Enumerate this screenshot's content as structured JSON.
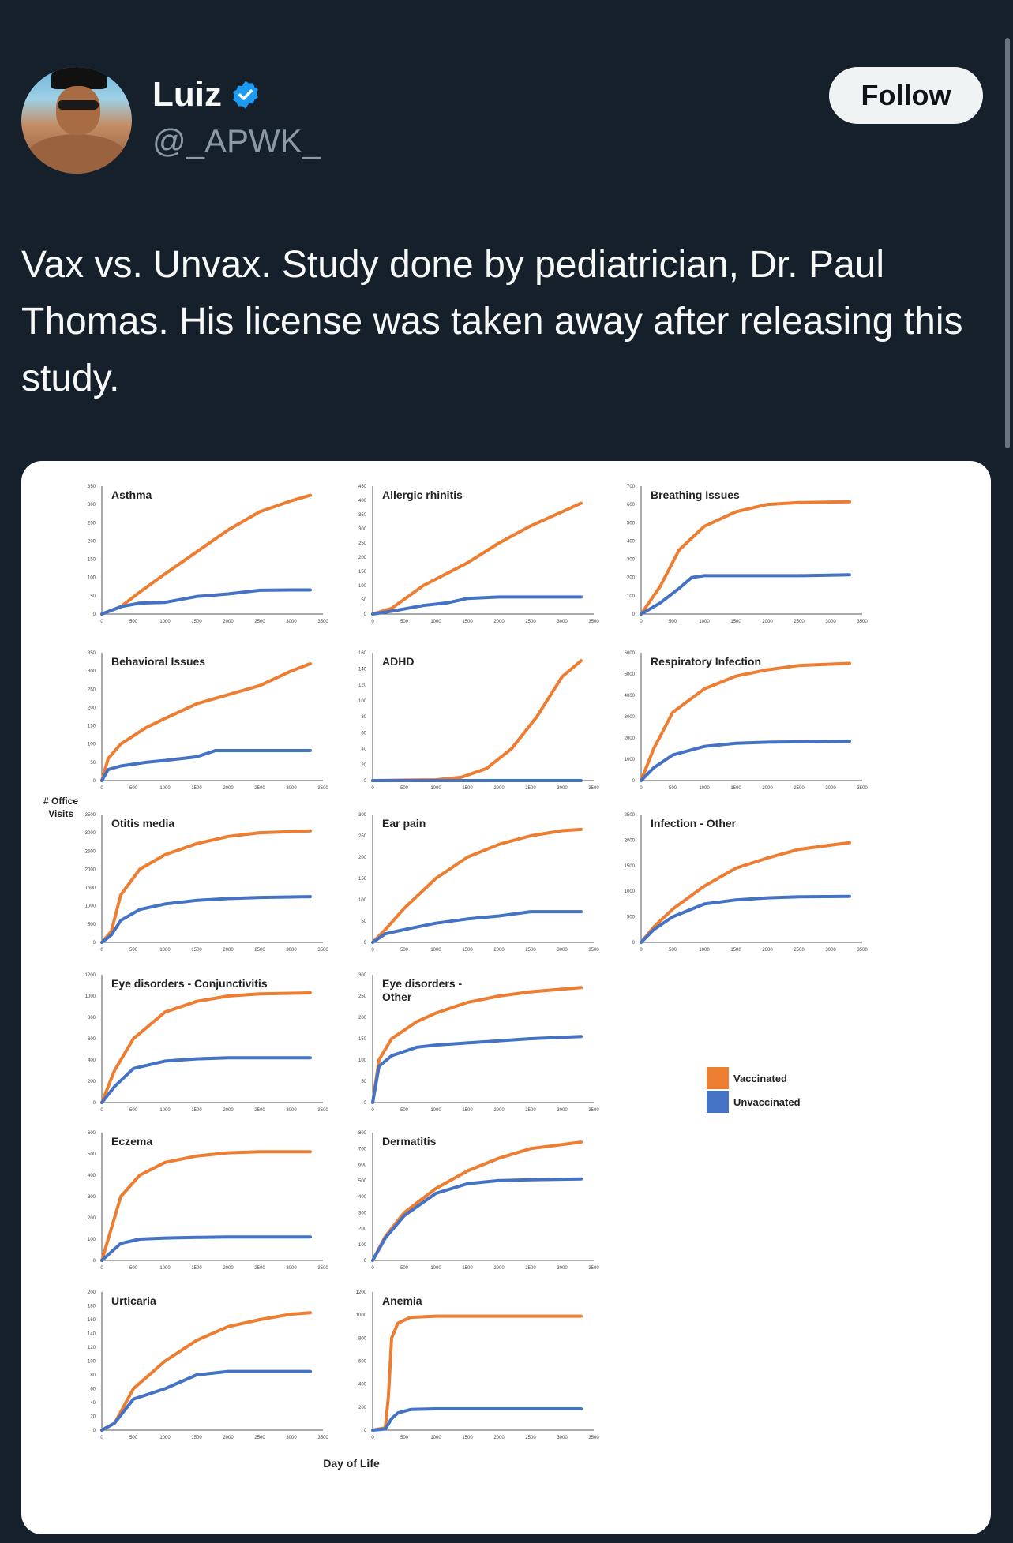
{
  "tweet": {
    "author_name": "Luiz",
    "handle": "@_APWK_",
    "follow_label": "Follow",
    "text": "Vax vs. Unvax. Study done by pediatrician, Dr. Paul Thomas. His license was taken away after releasing this study."
  },
  "colors": {
    "background": "#15202b",
    "verified": "#1d9bf0",
    "vaccinated": "#ed7d31",
    "unvaccinated": "#4472c4"
  },
  "figure": {
    "y_axis_label": "# Office Visits",
    "x_axis_label": "Day of Life",
    "legend": [
      {
        "label": "Vaccinated",
        "color": "#ed7d31"
      },
      {
        "label": "Unvaccinated",
        "color": "#4472c4"
      }
    ]
  },
  "chart_data": [
    {
      "type": "line",
      "title": "Asthma",
      "xlim": [
        0,
        3500
      ],
      "ylim": [
        0,
        350
      ],
      "x_ticks": [
        0,
        500,
        1000,
        1500,
        2000,
        2500,
        3000,
        3500
      ],
      "y_ticks": [
        0,
        50,
        100,
        150,
        200,
        250,
        300,
        350
      ],
      "series": [
        {
          "name": "Vaccinated",
          "x": [
            0,
            300,
            600,
            1000,
            1500,
            2000,
            2500,
            3000,
            3300
          ],
          "y": [
            0,
            20,
            60,
            110,
            170,
            230,
            280,
            310,
            325
          ]
        },
        {
          "name": "Unvaccinated",
          "x": [
            0,
            300,
            600,
            1000,
            1500,
            2000,
            2500,
            3000,
            3300
          ],
          "y": [
            0,
            20,
            30,
            32,
            48,
            55,
            65,
            66,
            66
          ]
        }
      ]
    },
    {
      "type": "line",
      "title": "Allergic rhinitis",
      "xlim": [
        0,
        3500
      ],
      "ylim": [
        0,
        450
      ],
      "x_ticks": [
        0,
        500,
        1000,
        1500,
        2000,
        2500,
        3000,
        3500
      ],
      "y_ticks": [
        0,
        50,
        100,
        150,
        200,
        250,
        300,
        350,
        400,
        450
      ],
      "series": [
        {
          "name": "Vaccinated",
          "x": [
            0,
            300,
            800,
            1500,
            2000,
            2500,
            3000,
            3300
          ],
          "y": [
            0,
            20,
            100,
            180,
            250,
            310,
            360,
            390
          ]
        },
        {
          "name": "Unvaccinated",
          "x": [
            0,
            300,
            800,
            1200,
            1500,
            2000,
            2500,
            3300
          ],
          "y": [
            0,
            10,
            30,
            40,
            55,
            60,
            60,
            60
          ]
        }
      ]
    },
    {
      "type": "line",
      "title": "Breathing Issues",
      "xlim": [
        0,
        3500
      ],
      "ylim": [
        0,
        700
      ],
      "x_ticks": [
        0,
        500,
        1000,
        1500,
        2000,
        2500,
        3000,
        3500
      ],
      "y_ticks": [
        0,
        100,
        200,
        300,
        400,
        500,
        600,
        700
      ],
      "series": [
        {
          "name": "Vaccinated",
          "x": [
            0,
            300,
            600,
            1000,
            1500,
            2000,
            2500,
            3300
          ],
          "y": [
            0,
            150,
            350,
            480,
            560,
            600,
            610,
            615
          ]
        },
        {
          "name": "Unvaccinated",
          "x": [
            0,
            300,
            600,
            800,
            1000,
            1500,
            2500,
            3300
          ],
          "y": [
            0,
            60,
            140,
            200,
            210,
            210,
            210,
            215
          ]
        }
      ]
    },
    {
      "type": "line",
      "title": "Behavioral Issues",
      "xlim": [
        0,
        3500
      ],
      "ylim": [
        0,
        350
      ],
      "x_ticks": [
        0,
        500,
        1000,
        1500,
        2000,
        2500,
        3000,
        3500
      ],
      "y_ticks": [
        0,
        50,
        100,
        150,
        200,
        250,
        300,
        350
      ],
      "series": [
        {
          "name": "Vaccinated",
          "x": [
            0,
            100,
            300,
            700,
            1000,
            1500,
            2000,
            2500,
            3000,
            3300
          ],
          "y": [
            0,
            60,
            100,
            145,
            170,
            210,
            235,
            260,
            300,
            320
          ]
        },
        {
          "name": "Unvaccinated",
          "x": [
            0,
            100,
            300,
            700,
            1000,
            1500,
            1800,
            2000,
            2500,
            3300
          ],
          "y": [
            0,
            30,
            40,
            50,
            55,
            65,
            82,
            82,
            82,
            82
          ]
        }
      ]
    },
    {
      "type": "line",
      "title": "ADHD",
      "xlim": [
        0,
        3500
      ],
      "ylim": [
        0,
        160
      ],
      "x_ticks": [
        0,
        500,
        1000,
        1500,
        2000,
        2500,
        3000,
        3500
      ],
      "y_ticks": [
        0,
        20,
        40,
        60,
        80,
        100,
        120,
        140,
        160
      ],
      "series": [
        {
          "name": "Vaccinated",
          "x": [
            0,
            1000,
            1400,
            1800,
            2200,
            2600,
            3000,
            3300
          ],
          "y": [
            0,
            1,
            4,
            15,
            40,
            80,
            130,
            150
          ]
        },
        {
          "name": "Unvaccinated",
          "x": [
            0,
            1000,
            2000,
            3300
          ],
          "y": [
            0,
            0,
            0,
            0
          ]
        }
      ]
    },
    {
      "type": "line",
      "title": "Respiratory Infection",
      "xlim": [
        0,
        3500
      ],
      "ylim": [
        0,
        6000
      ],
      "x_ticks": [
        0,
        500,
        1000,
        1500,
        2000,
        2500,
        3000,
        3500
      ],
      "y_ticks": [
        0,
        1000,
        2000,
        3000,
        4000,
        5000,
        6000
      ],
      "series": [
        {
          "name": "Vaccinated",
          "x": [
            0,
            200,
            500,
            1000,
            1500,
            2000,
            2500,
            3300
          ],
          "y": [
            0,
            1500,
            3200,
            4300,
            4900,
            5200,
            5400,
            5500
          ]
        },
        {
          "name": "Unvaccinated",
          "x": [
            0,
            200,
            500,
            1000,
            1500,
            2000,
            2500,
            3300
          ],
          "y": [
            0,
            600,
            1200,
            1600,
            1750,
            1800,
            1820,
            1850
          ]
        }
      ]
    },
    {
      "type": "line",
      "title": "Otitis media",
      "xlim": [
        0,
        3500
      ],
      "ylim": [
        0,
        3500
      ],
      "x_ticks": [
        0,
        500,
        1000,
        1500,
        2000,
        2500,
        3000,
        3500
      ],
      "y_ticks": [
        0,
        500,
        1000,
        1500,
        2000,
        2500,
        3000,
        3500
      ],
      "series": [
        {
          "name": "Vaccinated",
          "x": [
            0,
            150,
            300,
            600,
            1000,
            1500,
            2000,
            2500,
            3300
          ],
          "y": [
            0,
            300,
            1300,
            2000,
            2400,
            2700,
            2900,
            3000,
            3050
          ]
        },
        {
          "name": "Unvaccinated",
          "x": [
            0,
            150,
            300,
            600,
            1000,
            1500,
            2000,
            2500,
            3300
          ],
          "y": [
            0,
            200,
            600,
            900,
            1050,
            1150,
            1200,
            1230,
            1250
          ]
        }
      ]
    },
    {
      "type": "line",
      "title": "Ear pain",
      "xlim": [
        0,
        3500
      ],
      "ylim": [
        0,
        300
      ],
      "x_ticks": [
        0,
        500,
        1000,
        1500,
        2000,
        2500,
        3000,
        3500
      ],
      "y_ticks": [
        0,
        50,
        100,
        150,
        200,
        250,
        300
      ],
      "series": [
        {
          "name": "Vaccinated",
          "x": [
            0,
            200,
            500,
            1000,
            1500,
            2000,
            2500,
            3000,
            3300
          ],
          "y": [
            0,
            30,
            80,
            150,
            200,
            230,
            250,
            262,
            265
          ]
        },
        {
          "name": "Unvaccinated",
          "x": [
            0,
            200,
            500,
            1000,
            1500,
            2000,
            2500,
            3000,
            3300
          ],
          "y": [
            0,
            20,
            30,
            45,
            55,
            62,
            72,
            72,
            72
          ]
        }
      ]
    },
    {
      "type": "line",
      "title": "Infection - Other",
      "xlim": [
        0,
        3500
      ],
      "ylim": [
        0,
        2500
      ],
      "x_ticks": [
        0,
        500,
        1000,
        1500,
        2000,
        2500,
        3000,
        3500
      ],
      "y_ticks": [
        0,
        500,
        1000,
        1500,
        2000,
        2500
      ],
      "series": [
        {
          "name": "Vaccinated",
          "x": [
            0,
            200,
            500,
            1000,
            1500,
            2000,
            2500,
            3300
          ],
          "y": [
            0,
            300,
            650,
            1100,
            1450,
            1650,
            1820,
            1950
          ]
        },
        {
          "name": "Unvaccinated",
          "x": [
            0,
            200,
            500,
            1000,
            1500,
            2000,
            2500,
            3300
          ],
          "y": [
            0,
            250,
            500,
            750,
            830,
            870,
            890,
            900
          ]
        }
      ]
    },
    {
      "type": "line",
      "title": "Eye disorders - Conjunctivitis",
      "xlim": [
        0,
        3500
      ],
      "ylim": [
        0,
        1200
      ],
      "x_ticks": [
        0,
        500,
        1000,
        1500,
        2000,
        2500,
        3000,
        3500
      ],
      "y_ticks": [
        0,
        200,
        400,
        600,
        800,
        1000,
        1200
      ],
      "series": [
        {
          "name": "Vaccinated",
          "x": [
            0,
            200,
            500,
            1000,
            1500,
            2000,
            2500,
            3300
          ],
          "y": [
            0,
            300,
            600,
            850,
            950,
            1000,
            1020,
            1030
          ]
        },
        {
          "name": "Unvaccinated",
          "x": [
            0,
            200,
            500,
            1000,
            1500,
            2000,
            2500,
            3300
          ],
          "y": [
            0,
            150,
            320,
            390,
            410,
            420,
            420,
            420
          ]
        }
      ]
    },
    {
      "type": "line",
      "title": "Eye disorders - Other",
      "xlim": [
        0,
        3500
      ],
      "ylim": [
        0,
        300
      ],
      "x_ticks": [
        0,
        500,
        1000,
        1500,
        2000,
        2500,
        3000,
        3500
      ],
      "y_ticks": [
        0,
        50,
        100,
        150,
        200,
        250,
        300
      ],
      "series": [
        {
          "name": "Vaccinated",
          "x": [
            0,
            100,
            300,
            700,
            1000,
            1500,
            2000,
            2500,
            3300
          ],
          "y": [
            0,
            100,
            150,
            190,
            210,
            235,
            250,
            260,
            270
          ]
        },
        {
          "name": "Unvaccinated",
          "x": [
            0,
            100,
            300,
            700,
            1000,
            1500,
            2000,
            2500,
            3300
          ],
          "y": [
            0,
            85,
            110,
            130,
            135,
            140,
            145,
            150,
            155
          ]
        }
      ]
    },
    {
      "type": "line",
      "title": "Eczema",
      "xlim": [
        0,
        3500
      ],
      "ylim": [
        0,
        600
      ],
      "x_ticks": [
        0,
        500,
        1000,
        1500,
        2000,
        2500,
        3000,
        3500
      ],
      "y_ticks": [
        0,
        100,
        200,
        300,
        400,
        500,
        600
      ],
      "series": [
        {
          "name": "Vaccinated",
          "x": [
            0,
            150,
            300,
            600,
            1000,
            1500,
            2000,
            2500,
            3300
          ],
          "y": [
            0,
            150,
            300,
            400,
            460,
            490,
            505,
            510,
            510
          ]
        },
        {
          "name": "Unvaccinated",
          "x": [
            0,
            150,
            300,
            600,
            1000,
            1500,
            2000,
            2500,
            3300
          ],
          "y": [
            0,
            40,
            80,
            100,
            105,
            108,
            110,
            110,
            110
          ]
        }
      ]
    },
    {
      "type": "line",
      "title": "Dermatitis",
      "xlim": [
        0,
        3500
      ],
      "ylim": [
        0,
        800
      ],
      "x_ticks": [
        0,
        500,
        1000,
        1500,
        2000,
        2500,
        3000,
        3500
      ],
      "y_ticks": [
        0,
        100,
        200,
        300,
        400,
        500,
        600,
        700,
        800
      ],
      "series": [
        {
          "name": "Vaccinated",
          "x": [
            0,
            200,
            500,
            1000,
            1500,
            2000,
            2500,
            3300
          ],
          "y": [
            0,
            150,
            300,
            450,
            560,
            640,
            700,
            740
          ]
        },
        {
          "name": "Unvaccinated",
          "x": [
            0,
            200,
            500,
            1000,
            1500,
            2000,
            2500,
            3300
          ],
          "y": [
            0,
            140,
            280,
            420,
            480,
            500,
            505,
            510
          ]
        }
      ]
    },
    {
      "type": "line",
      "title": "Urticaria",
      "xlim": [
        0,
        3500
      ],
      "ylim": [
        0,
        200
      ],
      "x_ticks": [
        0,
        500,
        1000,
        1500,
        2000,
        2500,
        3000,
        3500
      ],
      "y_ticks": [
        0,
        20,
        40,
        60,
        80,
        100,
        120,
        140,
        160,
        180,
        200
      ],
      "series": [
        {
          "name": "Vaccinated",
          "x": [
            0,
            200,
            500,
            1000,
            1500,
            2000,
            2500,
            3000,
            3300
          ],
          "y": [
            0,
            10,
            60,
            100,
            130,
            150,
            160,
            168,
            170
          ]
        },
        {
          "name": "Unvaccinated",
          "x": [
            0,
            200,
            500,
            1000,
            1500,
            2000,
            2500,
            3000,
            3300
          ],
          "y": [
            0,
            10,
            45,
            60,
            80,
            85,
            85,
            85,
            85
          ]
        }
      ]
    },
    {
      "type": "line",
      "title": "Anemia",
      "xlim": [
        0,
        3500
      ],
      "ylim": [
        0,
        1200
      ],
      "x_ticks": [
        0,
        500,
        1000,
        1500,
        2000,
        2500,
        3000,
        3500
      ],
      "y_ticks": [
        0,
        200,
        400,
        600,
        800,
        1000,
        1200
      ],
      "series": [
        {
          "name": "Vaccinated",
          "x": [
            0,
            200,
            250,
            300,
            400,
            600,
            1000,
            2000,
            3300
          ],
          "y": [
            0,
            20,
            300,
            800,
            930,
            980,
            990,
            990,
            990
          ]
        },
        {
          "name": "Unvaccinated",
          "x": [
            0,
            200,
            300,
            400,
            600,
            1000,
            2000,
            3300
          ],
          "y": [
            0,
            10,
            100,
            150,
            180,
            185,
            185,
            185
          ]
        }
      ]
    }
  ]
}
